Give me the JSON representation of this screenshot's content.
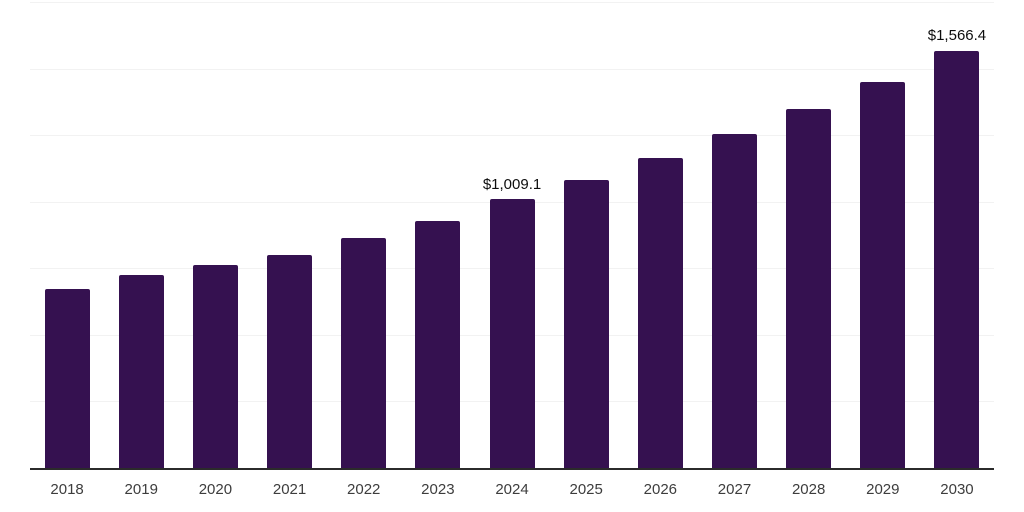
{
  "chart_data": {
    "type": "bar",
    "title": "",
    "xlabel": "",
    "ylabel": "",
    "categories": [
      "2018",
      "2019",
      "2020",
      "2021",
      "2022",
      "2023",
      "2024",
      "2025",
      "2026",
      "2027",
      "2028",
      "2029",
      "2030"
    ],
    "values": [
      671,
      723,
      761,
      799,
      862,
      929,
      1009.1,
      1080,
      1166,
      1253,
      1348,
      1448,
      1566.4
    ],
    "value_labels": [
      "",
      "",
      "",
      "",
      "",
      "",
      "$1,009.1",
      "",
      "",
      "",
      "",
      "",
      "$1,566.4"
    ],
    "ylim": [
      0,
      1750
    ],
    "gridline_values": [
      250,
      500,
      750,
      1000,
      1250,
      1500,
      1750
    ],
    "grid": "horizontal",
    "y_axis_tick_labels_shown": false,
    "legend_position": "none"
  },
  "colors": {
    "bar": "#351150",
    "axis_line": "#2b2b2b",
    "gridline": "#f2f2f2",
    "tick_label": "#3d3d3d",
    "value_label": "#0d0d0d",
    "background": "#ffffff"
  }
}
